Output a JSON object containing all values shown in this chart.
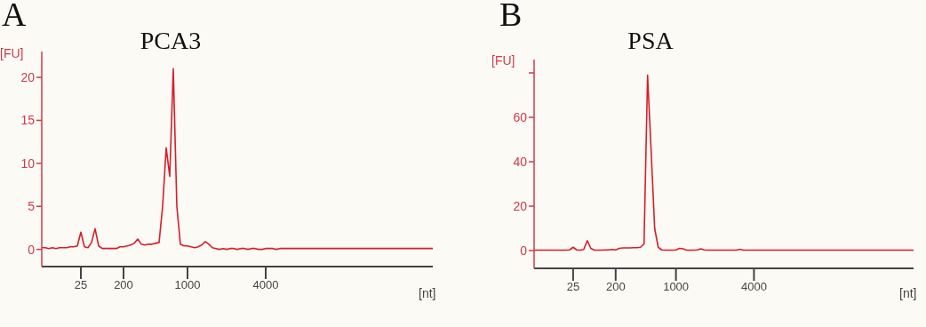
{
  "chart_data": [
    {
      "type": "line",
      "title": "PCA3",
      "annotations": [
        "A"
      ],
      "xlabel": "[nt]",
      "ylabel": "[FU]",
      "categories": [
        null,
        null,
        null,
        null,
        null,
        null,
        null,
        null,
        null,
        null,
        null,
        "25",
        null,
        null,
        null,
        null,
        null,
        null,
        null,
        null,
        null,
        null,
        null,
        "200",
        null,
        null,
        null,
        null,
        null,
        null,
        null,
        null,
        null,
        null,
        null,
        null,
        null,
        null,
        null,
        null,
        null,
        "1000",
        null,
        null,
        null,
        null,
        null,
        null,
        null,
        null,
        null,
        null,
        null,
        null,
        null,
        null,
        null,
        null,
        null,
        null,
        null,
        null,
        null,
        "4000",
        null,
        null,
        null,
        null,
        null,
        null,
        null,
        null,
        null,
        null,
        null,
        null,
        null,
        null,
        null,
        null,
        null,
        null,
        null,
        null,
        null,
        null,
        null,
        null,
        null,
        null,
        null,
        null,
        null,
        null,
        null,
        null,
        null,
        null,
        null,
        null,
        null,
        null,
        null,
        null,
        null,
        null,
        null,
        null,
        null,
        null,
        null
      ],
      "series": [
        {
          "color": "#d81e2a",
          "values": [
            0.2,
            0.2,
            0.1,
            0.2,
            0.1,
            0.2,
            0.2,
            0.2,
            0.3,
            0.3,
            0.4,
            2.0,
            0.3,
            0.2,
            0.8,
            2.4,
            0.4,
            0.1,
            0.1,
            0.1,
            0.1,
            0.1,
            0.3,
            0.3,
            0.4,
            0.5,
            0.7,
            1.2,
            0.6,
            0.5,
            0.6,
            0.6,
            0.7,
            0.8,
            5,
            11.8,
            8.5,
            21,
            5,
            0.6,
            0.4,
            0.4,
            0.3,
            0.2,
            0.3,
            0.5,
            0.9,
            0.6,
            0.2,
            0.1,
            0.0,
            0.1,
            0.0,
            0.1,
            0.1,
            0.0,
            0.1,
            0.1,
            0.0,
            0.1,
            0.1,
            0.0,
            0.0,
            0.1,
            0.1,
            0.1,
            0.0,
            0.1,
            0.1,
            0.1,
            0.1,
            0.1,
            0.1,
            0.1,
            0.1,
            0.1,
            0.1,
            0.1,
            0.1,
            0.1,
            0.1,
            0.1,
            0.1,
            0.1,
            0.1,
            0.1,
            0.1,
            0.1,
            0.1,
            0.1,
            0.1,
            0.1,
            0.1,
            0.1,
            0.1,
            0.1,
            0.1,
            0.1,
            0.1,
            0.1,
            0.1,
            0.1,
            0.1,
            0.1,
            0.1,
            0.1,
            0.1,
            0.1,
            0.1,
            0.1,
            0.1
          ]
        }
      ],
      "ylim": [
        -2,
        23
      ],
      "yticks": [
        0,
        5,
        10,
        15,
        20
      ]
    },
    {
      "type": "line",
      "title": "PSA",
      "annotations": [
        "B"
      ],
      "xlabel": "[nt]",
      "ylabel": "[FU]",
      "categories": [
        null,
        null,
        null,
        null,
        null,
        null,
        null,
        null,
        null,
        null,
        null,
        "25",
        null,
        null,
        null,
        null,
        null,
        null,
        null,
        null,
        null,
        null,
        null,
        "200",
        null,
        null,
        null,
        null,
        null,
        null,
        null,
        null,
        null,
        null,
        null,
        null,
        null,
        null,
        null,
        null,
        "1000",
        null,
        null,
        null,
        null,
        null,
        null,
        null,
        null,
        null,
        null,
        null,
        null,
        null,
        null,
        null,
        null,
        null,
        null,
        null,
        null,
        null,
        "4000",
        null,
        null,
        null,
        null,
        null,
        null,
        null,
        null,
        null,
        null,
        null,
        null,
        null,
        null,
        null,
        null,
        null,
        null,
        null,
        null,
        null,
        null,
        null,
        null,
        null,
        null,
        null,
        null,
        null,
        null,
        null,
        null,
        null,
        null,
        null,
        null,
        null,
        null,
        null,
        null,
        null,
        null,
        null,
        null,
        null
      ],
      "series": [
        {
          "color": "#d81e2a",
          "values": [
            0.2,
            0.2,
            0.2,
            0.2,
            0.2,
            0.2,
            0.2,
            0.2,
            0.2,
            0.2,
            0.3,
            1.5,
            0.3,
            0.2,
            0.5,
            4.5,
            1.0,
            0.2,
            0.2,
            0.2,
            0.3,
            0.3,
            0.5,
            0.3,
            1.0,
            1.2,
            1.2,
            1.2,
            1.3,
            1.3,
            1.5,
            3,
            79,
            45,
            10,
            1.5,
            0.3,
            0.2,
            0.2,
            0.2,
            0.3,
            1.0,
            0.8,
            0.2,
            0.2,
            0.2,
            0.3,
            0.8,
            0.3,
            0.2,
            0.2,
            0.2,
            0.2,
            0.2,
            0.2,
            0.2,
            0.2,
            0.2,
            0.6,
            0.2,
            0.2,
            0.2,
            0.2,
            0.2,
            0.2,
            0.2,
            0.2,
            0.2,
            0.2,
            0.2,
            0.2,
            0.2,
            0.2,
            0.2,
            0.2,
            0.2,
            0.2,
            0.2,
            0.2,
            0.2,
            0.2,
            0.2,
            0.2,
            0.2,
            0.2,
            0.2,
            0.2,
            0.2,
            0.2,
            0.2,
            0.2,
            0.2,
            0.2,
            0.2,
            0.2,
            0.2,
            0.2,
            0.2,
            0.2,
            0.2,
            0.2,
            0.2,
            0.2,
            0.2,
            0.2,
            0.2,
            0.2,
            0.2
          ]
        }
      ],
      "ylim": [
        -8,
        86
      ],
      "yticks": [
        0,
        20,
        40,
        60,
        {
          "value": 80,
          "label": null
        }
      ]
    }
  ]
}
